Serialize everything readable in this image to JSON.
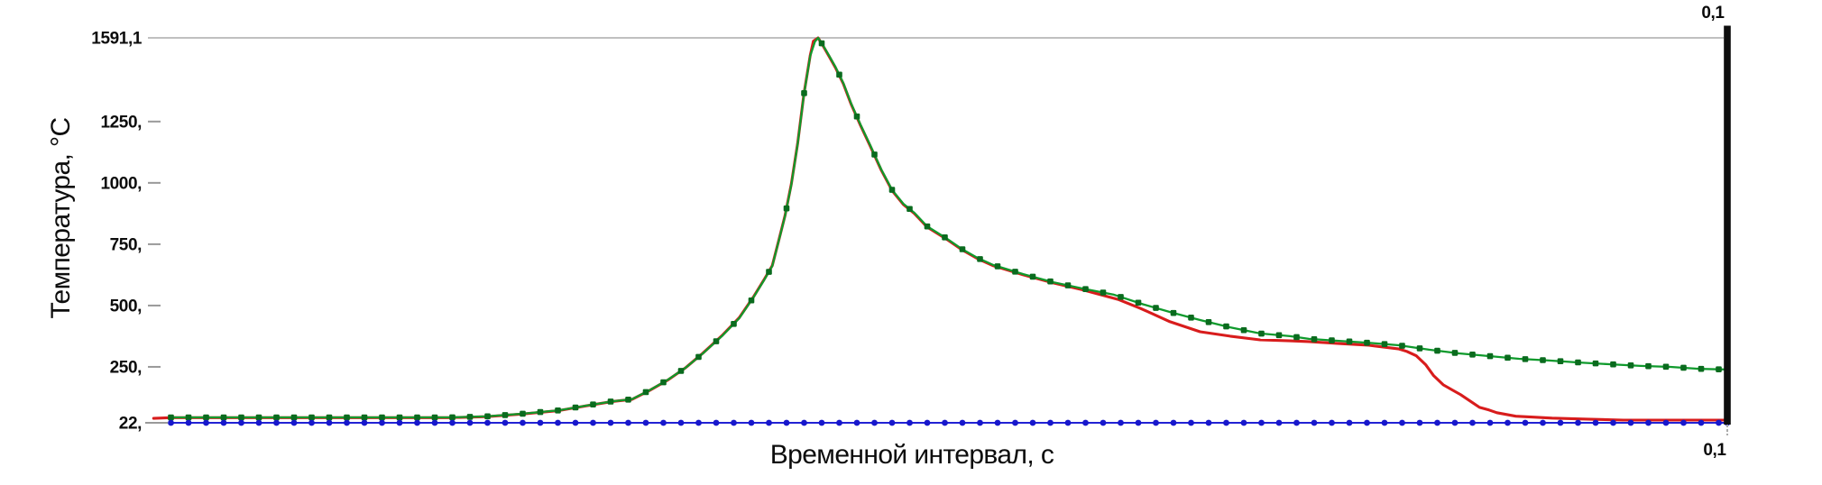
{
  "chart_data": {
    "type": "line",
    "title": "",
    "legend": "none",
    "grid": "top-gridline-only",
    "x_axis": {
      "label": "Временной интервал, с",
      "min": 0,
      "max": 0.1,
      "top_end_label": "0,1",
      "bottom_end_label": "0,1"
    },
    "y_axis": {
      "label": "Температура, °C",
      "min": 22,
      "max": 1591.1,
      "ticks": [
        {
          "label": "1591,1",
          "value": 1591.1,
          "grid": true
        },
        {
          "label": "1250,",
          "value": 1250,
          "grid": false
        },
        {
          "label": "1000,",
          "value": 1000,
          "grid": false
        },
        {
          "label": "750,",
          "value": 750,
          "grid": false
        },
        {
          "label": "500,",
          "value": 500,
          "grid": false
        },
        {
          "label": "250,",
          "value": 250,
          "grid": false
        },
        {
          "label": "22,",
          "value": 22,
          "grid": false
        }
      ]
    },
    "series": [
      {
        "name": "red-curve",
        "color": "#d81c1c",
        "line_width": 3.1,
        "marker": "none",
        "points": [
          [
            0.0003,
            40
          ],
          [
            0.0014,
            43
          ],
          [
            0.008,
            43
          ],
          [
            0.015,
            43
          ],
          [
            0.019,
            43
          ],
          [
            0.0214,
            47
          ],
          [
            0.0237,
            58
          ],
          [
            0.026,
            72
          ],
          [
            0.0277,
            91
          ],
          [
            0.0294,
            109
          ],
          [
            0.0306,
            117
          ],
          [
            0.0317,
            153
          ],
          [
            0.0329,
            197
          ],
          [
            0.034,
            246
          ],
          [
            0.0351,
            306
          ],
          [
            0.0363,
            377
          ],
          [
            0.0374,
            450
          ],
          [
            0.0383,
            535
          ],
          [
            0.039,
            608
          ],
          [
            0.0395,
            663
          ],
          [
            0.0399,
            763
          ],
          [
            0.0403,
            866
          ],
          [
            0.0407,
            995
          ],
          [
            0.0411,
            1160
          ],
          [
            0.0415,
            1363
          ],
          [
            0.0419,
            1520
          ],
          [
            0.0421,
            1578
          ],
          [
            0.0424,
            1591.1
          ],
          [
            0.0427,
            1560
          ],
          [
            0.0431,
            1515
          ],
          [
            0.0435,
            1470
          ],
          [
            0.044,
            1404
          ],
          [
            0.0445,
            1320
          ],
          [
            0.0451,
            1232
          ],
          [
            0.0457,
            1151
          ],
          [
            0.0464,
            1052
          ],
          [
            0.0471,
            967
          ],
          [
            0.0478,
            912
          ],
          [
            0.0485,
            875
          ],
          [
            0.0493,
            820
          ],
          [
            0.0505,
            772
          ],
          [
            0.0515,
            728
          ],
          [
            0.0525,
            691
          ],
          [
            0.0535,
            662
          ],
          [
            0.0554,
            625
          ],
          [
            0.0573,
            592
          ],
          [
            0.0591,
            565
          ],
          [
            0.0614,
            525
          ],
          [
            0.0628,
            489
          ],
          [
            0.0647,
            434
          ],
          [
            0.0666,
            393
          ],
          [
            0.0685,
            375
          ],
          [
            0.0704,
            360
          ],
          [
            0.0723,
            356
          ],
          [
            0.0735,
            353
          ],
          [
            0.0754,
            345
          ],
          [
            0.0773,
            338
          ],
          [
            0.0792,
            323
          ],
          [
            0.0797,
            313
          ],
          [
            0.0803,
            295
          ],
          [
            0.0809,
            258
          ],
          [
            0.0814,
            214
          ],
          [
            0.082,
            177
          ],
          [
            0.0826,
            155
          ],
          [
            0.0831,
            137
          ],
          [
            0.0837,
            111
          ],
          [
            0.0843,
            85
          ],
          [
            0.0849,
            74
          ],
          [
            0.0854,
            63
          ],
          [
            0.0866,
            49
          ],
          [
            0.0877,
            45
          ],
          [
            0.0889,
            41
          ],
          [
            0.0911,
            37
          ],
          [
            0.0934,
            33
          ],
          [
            0.1,
            33
          ]
        ]
      },
      {
        "name": "green-curve",
        "color": "#0f9a2c",
        "line_width": 2.3,
        "marker": "square",
        "marker_color": "#0a6b1e",
        "marker_size": 6.6,
        "points": [
          [
            0.0014,
            44
          ],
          [
            0.008,
            44
          ],
          [
            0.015,
            44
          ],
          [
            0.019,
            44
          ],
          [
            0.0214,
            48
          ],
          [
            0.0237,
            59
          ],
          [
            0.026,
            73
          ],
          [
            0.0277,
            92
          ],
          [
            0.0294,
            110
          ],
          [
            0.0306,
            118
          ],
          [
            0.0317,
            154
          ],
          [
            0.0329,
            198
          ],
          [
            0.034,
            246
          ],
          [
            0.0351,
            305
          ],
          [
            0.0363,
            375
          ],
          [
            0.0374,
            448
          ],
          [
            0.0383,
            533
          ],
          [
            0.039,
            606
          ],
          [
            0.0395,
            661
          ],
          [
            0.0399,
            761
          ],
          [
            0.0403,
            864
          ],
          [
            0.0407,
            992
          ],
          [
            0.0411,
            1157
          ],
          [
            0.0415,
            1360
          ],
          [
            0.0419,
            1518
          ],
          [
            0.0422,
            1576
          ],
          [
            0.0424,
            1591.1
          ],
          [
            0.0427,
            1562
          ],
          [
            0.0431,
            1518
          ],
          [
            0.0435,
            1473
          ],
          [
            0.044,
            1407
          ],
          [
            0.0445,
            1323
          ],
          [
            0.0451,
            1235
          ],
          [
            0.0457,
            1154
          ],
          [
            0.0464,
            1055
          ],
          [
            0.0471,
            970
          ],
          [
            0.0478,
            915
          ],
          [
            0.0485,
            878
          ],
          [
            0.0493,
            823
          ],
          [
            0.0505,
            775
          ],
          [
            0.0515,
            731
          ],
          [
            0.0525,
            694
          ],
          [
            0.0535,
            665
          ],
          [
            0.0554,
            628
          ],
          [
            0.0573,
            595
          ],
          [
            0.0591,
            570
          ],
          [
            0.0611,
            545
          ],
          [
            0.063,
            505
          ],
          [
            0.0649,
            470
          ],
          [
            0.0666,
            441
          ],
          [
            0.0685,
            411
          ],
          [
            0.0704,
            386
          ],
          [
            0.0723,
            375
          ],
          [
            0.0735,
            364
          ],
          [
            0.0754,
            356
          ],
          [
            0.0773,
            348
          ],
          [
            0.0792,
            338
          ],
          [
            0.0811,
            320
          ],
          [
            0.083,
            305
          ],
          [
            0.0849,
            294
          ],
          [
            0.0868,
            283
          ],
          [
            0.0887,
            276
          ],
          [
            0.0906,
            268
          ],
          [
            0.0925,
            261
          ],
          [
            0.0945,
            254
          ],
          [
            0.0964,
            250
          ],
          [
            0.0982,
            242
          ],
          [
            0.1,
            239
          ]
        ]
      },
      {
        "name": "blue-curve",
        "color": "#2222d4",
        "line_width": 2,
        "marker": "circle",
        "marker_color": "#1717cc",
        "marker_size": 6.8,
        "points": [
          [
            0.0014,
            22
          ],
          [
            0.05,
            22
          ],
          [
            0.1,
            22
          ]
        ]
      }
    ]
  },
  "colors": {
    "grid": "#9b9b9b",
    "tick": "#999999",
    "axis_text": "#0d0d0d",
    "right_border": "#0d0d0d",
    "background": "#ffffff"
  }
}
